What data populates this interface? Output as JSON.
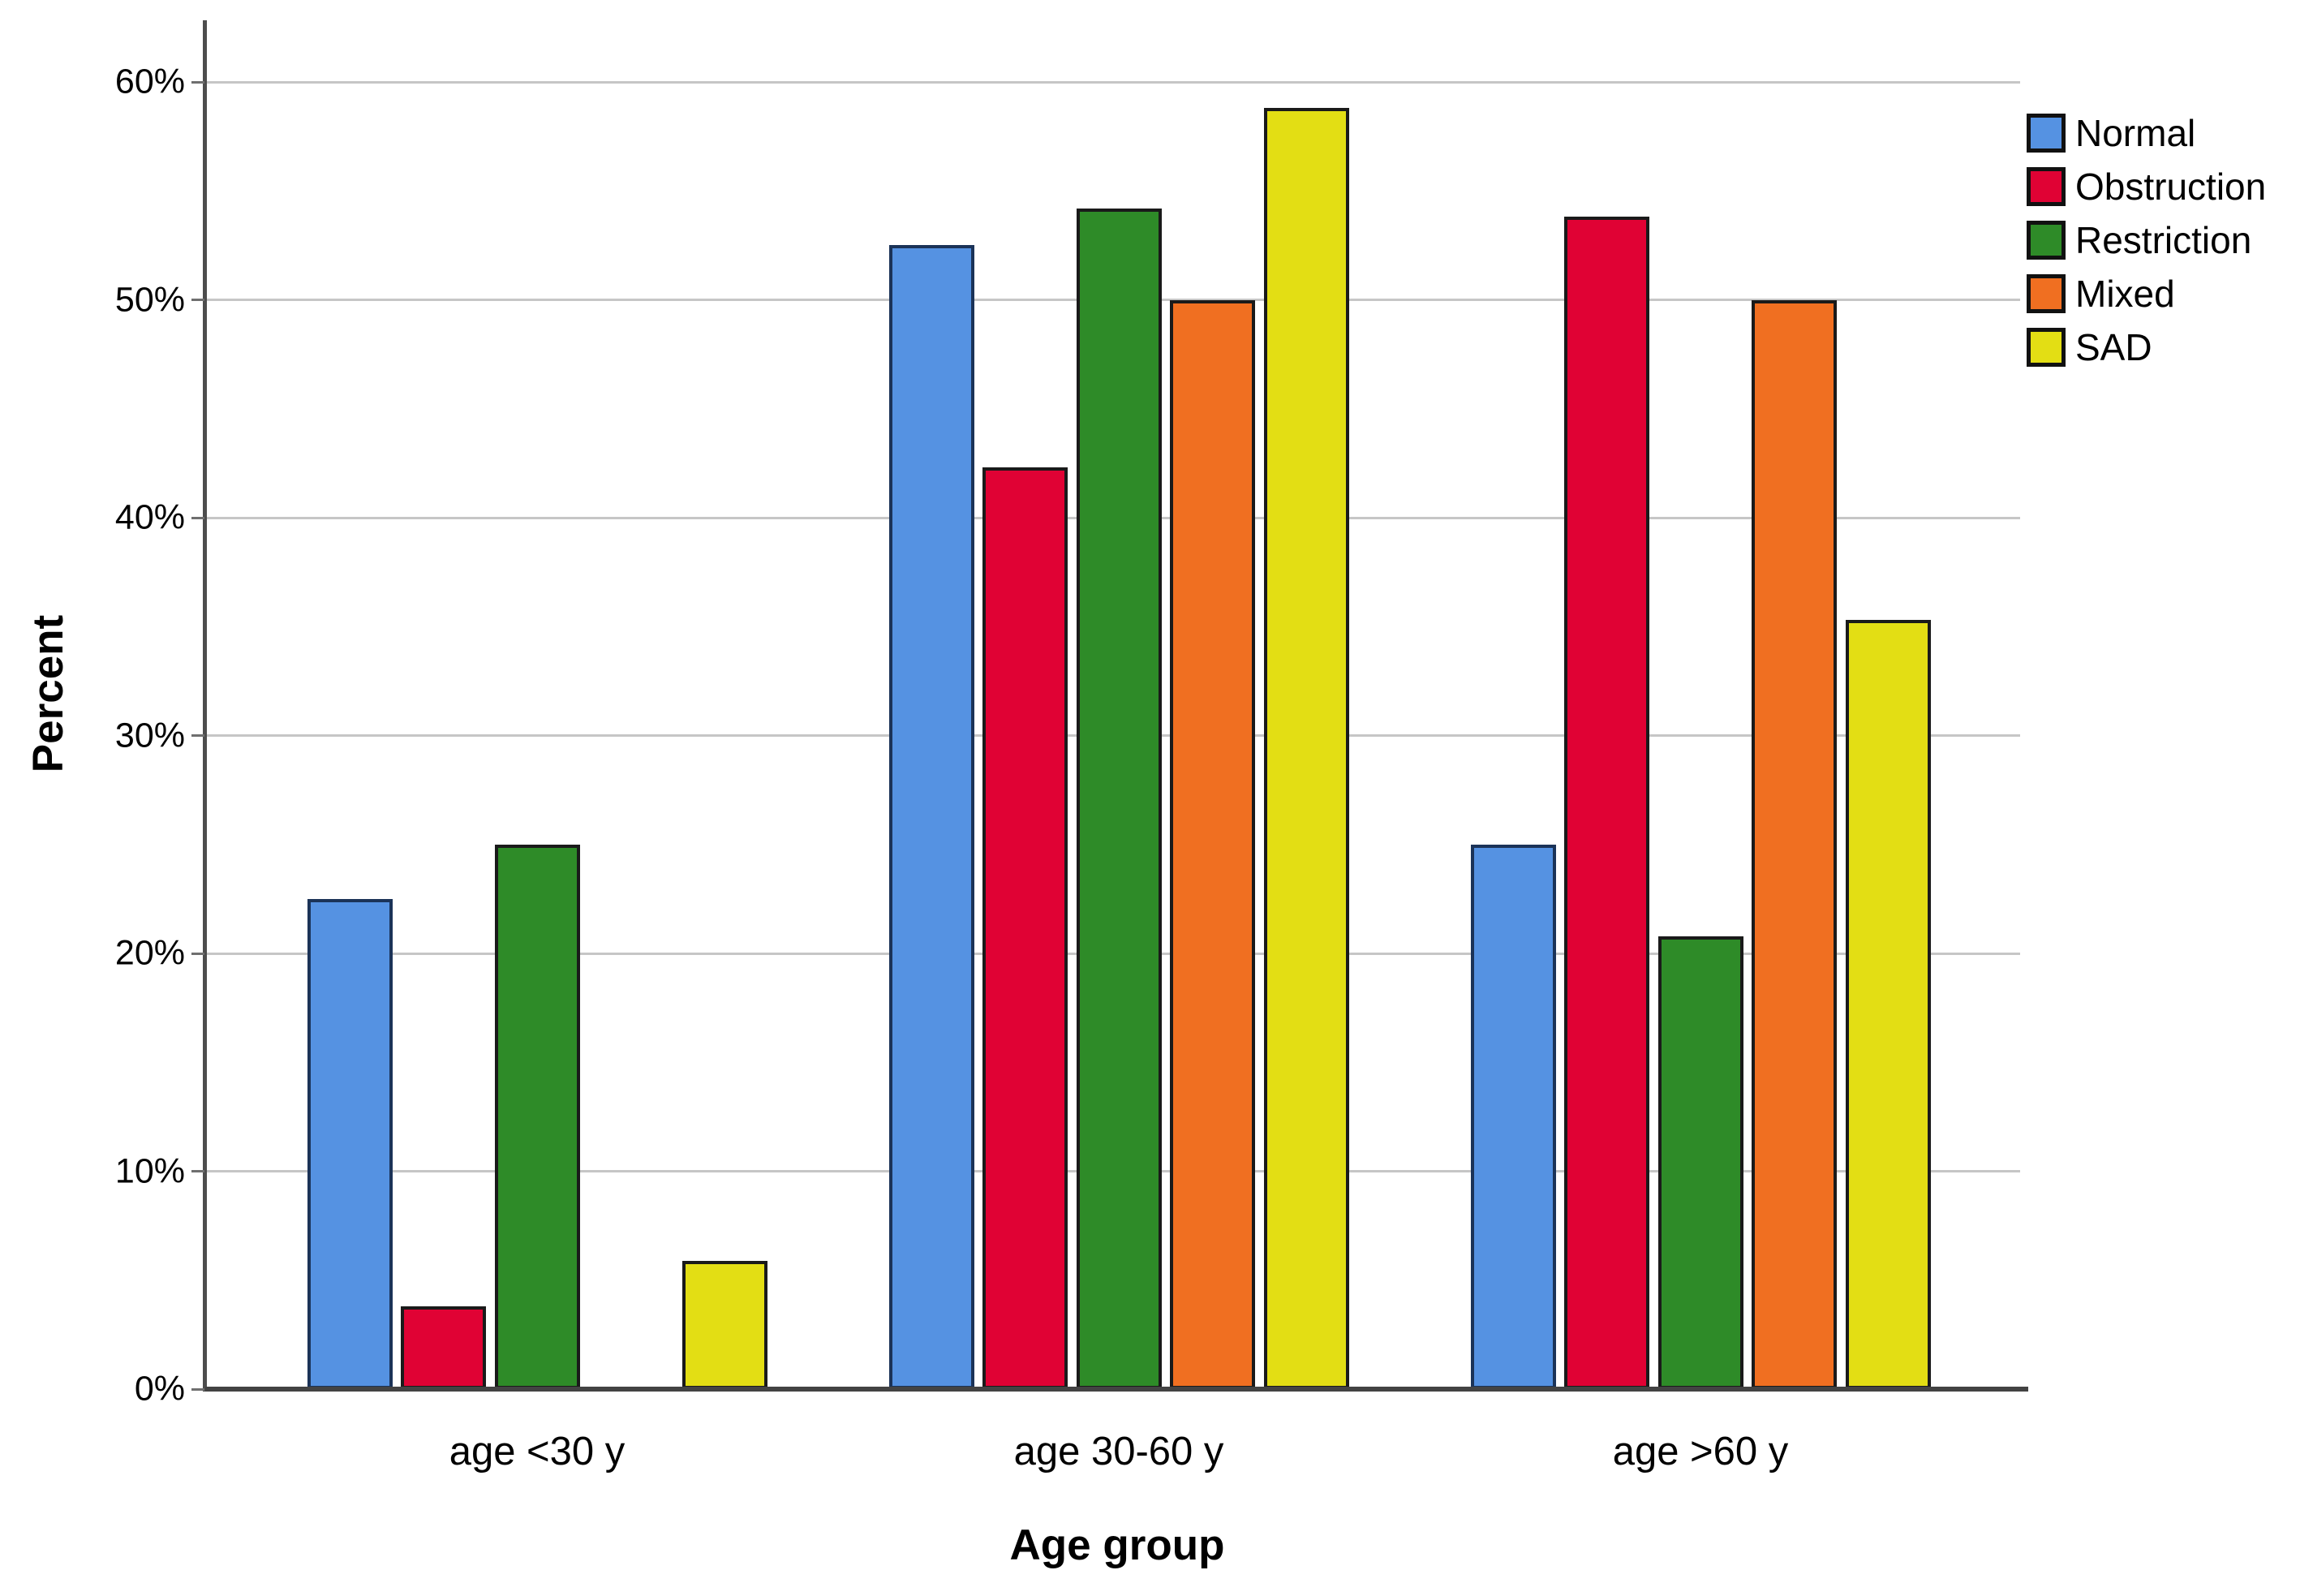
{
  "chart_data": {
    "type": "bar",
    "title": "",
    "xlabel": "Age group",
    "ylabel": "Percent",
    "categories": [
      "age <30 y",
      "age 30-60 y",
      "age >60 y"
    ],
    "series": [
      {
        "name": "Normal",
        "color": "#5592E2",
        "border": "#1B3358",
        "values": [
          22.5,
          52.5,
          25.0
        ]
      },
      {
        "name": "Obstruction",
        "color": "#E00234",
        "border": "#1a1a1a",
        "values": [
          3.8,
          42.3,
          53.8
        ]
      },
      {
        "name": "Restriction",
        "color": "#2E8B28",
        "border": "#1a1a1a",
        "values": [
          25.0,
          54.2,
          20.8
        ]
      },
      {
        "name": "Mixed",
        "color": "#F06F21",
        "border": "#1a1a1a",
        "values": [
          0,
          50.0,
          50.0
        ]
      },
      {
        "name": "SAD",
        "color": "#E3DE14",
        "border": "#1a1a1a",
        "values": [
          5.9,
          58.8,
          35.3
        ]
      }
    ],
    "ylim": [
      0,
      60
    ],
    "yticks": [
      {
        "value": 0,
        "label": "0%"
      },
      {
        "value": 10,
        "label": "10%"
      },
      {
        "value": 20,
        "label": "20%"
      },
      {
        "value": 30,
        "label": "30%"
      },
      {
        "value": 40,
        "label": "40%"
      },
      {
        "value": 50,
        "label": "50%"
      },
      {
        "value": 60,
        "label": "60%"
      }
    ],
    "grid": true,
    "legend_position": "right"
  },
  "colors": {
    "background": "#ffffff",
    "gridline": "#c6c6c6",
    "axis_line": "#434343",
    "text": "#000000"
  }
}
